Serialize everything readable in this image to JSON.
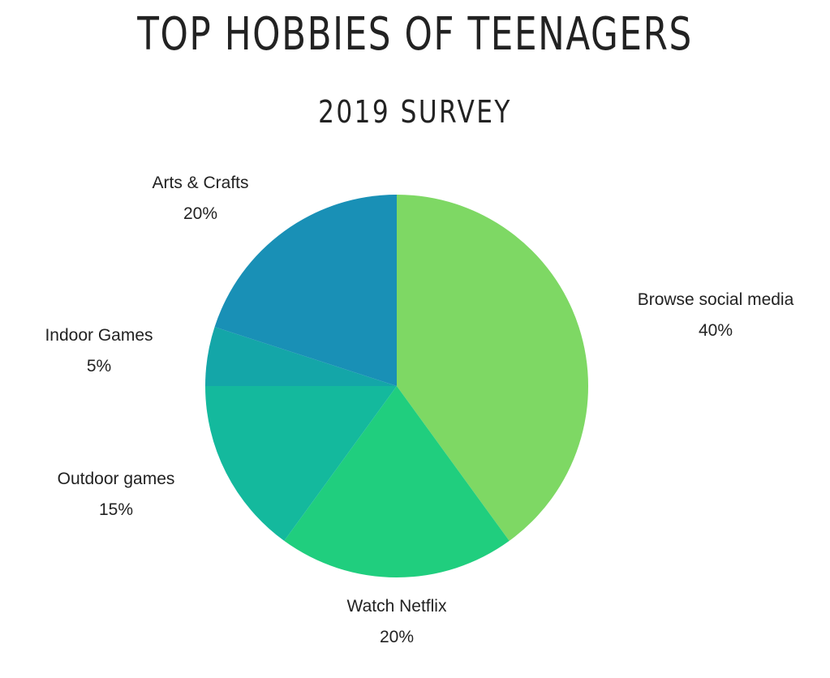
{
  "chart_data": {
    "type": "pie",
    "title": "TOP HOBBIES OF TEENAGERS",
    "subtitle": "2019 SURVEY",
    "slices": [
      {
        "label": "Browse social media",
        "value": 40,
        "value_label": "40%",
        "color": "#7ed864"
      },
      {
        "label": "Watch Netflix",
        "value": 20,
        "value_label": "20%",
        "color": "#20ce7e"
      },
      {
        "label": "Outdoor games",
        "value": 15,
        "value_label": "15%",
        "color": "#14b99d"
      },
      {
        "label": "Indoor Games",
        "value": 5,
        "value_label": "5%",
        "color": "#14a6a8"
      },
      {
        "label": "Arts & Crafts",
        "value": 20,
        "value_label": "20%",
        "color": "#1990b6"
      }
    ],
    "start_angle_deg": 0,
    "direction": "clockwise",
    "legend": "none"
  }
}
